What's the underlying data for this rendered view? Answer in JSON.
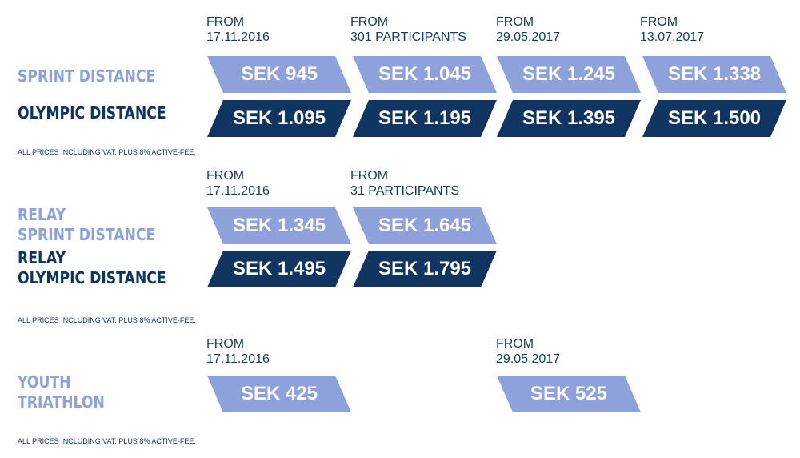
{
  "colors": {
    "light_blue": "#8ea1da",
    "dark_blue": "#0f3560",
    "text_navy": "#123d6b"
  },
  "note": "ALL PRICES INCLUDING VAT; PLUS 8% ACTIVE-FEE.",
  "section_individual": {
    "phases": [
      {
        "line1": "FROM",
        "line2": "17.11.2016"
      },
      {
        "line1": "FROM",
        "line2": "301 PARTICIPANTS"
      },
      {
        "line1": "FROM",
        "line2": "29.05.2017"
      },
      {
        "line1": "FROM",
        "line2": "13.07.2017"
      }
    ],
    "sprint_label": "SPRINT DISTANCE",
    "olympic_label": "OLYMPIC DISTANCE",
    "sprint_prices": [
      "SEK 945",
      "SEK 1.045",
      "SEK 1.245",
      "SEK 1.338"
    ],
    "olympic_prices": [
      "SEK 1.095",
      "SEK 1.195",
      "SEK 1.395",
      "SEK 1.500"
    ]
  },
  "section_relay": {
    "phases": [
      {
        "line1": "FROM",
        "line2": "17.11.2016"
      },
      {
        "line1": "FROM",
        "line2": "31 PARTICIPANTS"
      }
    ],
    "sprint_label_line1": "RELAY",
    "sprint_label_line2": "SPRINT DISTANCE",
    "olympic_label_line1": "RELAY",
    "olympic_label_line2": "OLYMPIC DISTANCE",
    "sprint_prices": [
      "SEK 1.345",
      "SEK 1.645"
    ],
    "olympic_prices": [
      "SEK 1.495",
      "SEK 1.795"
    ]
  },
  "section_youth": {
    "phases": [
      {
        "line1": "FROM",
        "line2": "17.11.2016"
      },
      {
        "line1": "FROM",
        "line2": "29.05.2017"
      }
    ],
    "label_line1": "YOUTH",
    "label_line2": "TRIATHLON",
    "prices": [
      "SEK 425",
      "SEK 525"
    ]
  }
}
